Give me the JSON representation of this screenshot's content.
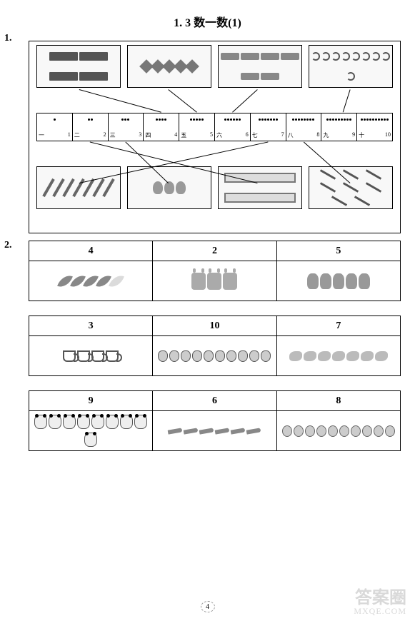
{
  "page": {
    "title": "1. 3   数一数(1)",
    "pageNumber": "4",
    "watermarkTop": "答案圈",
    "watermarkBottom": "MXQE.COM"
  },
  "q1": {
    "number": "1.",
    "topBoxes": [
      {
        "name": "books-box",
        "count": 4,
        "itemClass": "book",
        "target": 4
      },
      {
        "name": "diamonds-box",
        "count": 5,
        "itemClass": "diamond",
        "target": 5
      },
      {
        "name": "money-box",
        "count": 6,
        "itemClass": "money",
        "target": 6
      },
      {
        "name": "arcs-box",
        "count": 9,
        "itemClass": "arc",
        "target": 9
      }
    ],
    "numberBar": [
      {
        "cn": "一",
        "ar": "1",
        "dots": 1
      },
      {
        "cn": "二",
        "ar": "2",
        "dots": 2
      },
      {
        "cn": "三",
        "ar": "3",
        "dots": 3
      },
      {
        "cn": "四",
        "ar": "4",
        "dots": 4
      },
      {
        "cn": "五",
        "ar": "5",
        "dots": 5
      },
      {
        "cn": "六",
        "ar": "6",
        "dots": 6
      },
      {
        "cn": "七",
        "ar": "7",
        "dots": 7
      },
      {
        "cn": "八",
        "ar": "8",
        "dots": 8
      },
      {
        "cn": "九",
        "ar": "9",
        "dots": 9
      },
      {
        "cn": "十",
        "ar": "10",
        "dots": 10
      }
    ],
    "bottomBoxes": [
      {
        "name": "pencils-box",
        "count": 7,
        "itemClass": "pencil",
        "target": 7
      },
      {
        "name": "drops-box",
        "count": 3,
        "itemClass": "drop",
        "target": 3
      },
      {
        "name": "rulers-box",
        "count": 2,
        "itemClass": "ruler",
        "target": 2
      },
      {
        "name": "pens-box",
        "count": 8,
        "itemClass": "pen",
        "target": 8
      }
    ],
    "lines": {
      "stroke": "#000000",
      "strokeWidth": 1,
      "paths": [
        "M 70 68  L 185 100",
        "M 195 68 L 235 100",
        "M 320 68 L 285 100",
        "M 450 68 L 440 100",
        "M 70 200 L 335 142",
        "M 195 200 L 135 142",
        "M 320 200 L 85 142",
        "M 450 200 L 385 142"
      ]
    }
  },
  "q2": {
    "number": "2.",
    "groups": [
      {
        "cells": [
          {
            "header": "4",
            "name": "feathers-cell",
            "itemClass": "feather",
            "count": 4,
            "extraDim": 1
          },
          {
            "header": "2",
            "name": "monsters-cell",
            "itemClass": "monster",
            "count": 3,
            "extraDim": 0
          },
          {
            "header": "5",
            "name": "monkeys-cell",
            "itemClass": "monkey",
            "count": 5,
            "extraDim": 0
          }
        ]
      },
      {
        "cells": [
          {
            "header": "3",
            "name": "cups-cell",
            "itemClass": "cup",
            "count": 4,
            "extraDim": 0
          },
          {
            "header": "10",
            "name": "peaches-cell",
            "itemClass": "peach",
            "count": 10,
            "extraDim": 0
          },
          {
            "header": "7",
            "name": "birds-cell",
            "itemClass": "bird",
            "count": 7,
            "extraDim": 0
          }
        ]
      },
      {
        "cells": [
          {
            "header": "9",
            "name": "pandas-cell",
            "itemClass": "panda",
            "count": 9,
            "extraDim": 0
          },
          {
            "header": "6",
            "name": "brushes-cell",
            "itemClass": "brush",
            "count": 6,
            "extraDim": 0
          },
          {
            "header": "8",
            "name": "bugs-cell",
            "itemClass": "bug",
            "count": 10,
            "extraDim": 0
          }
        ]
      }
    ]
  },
  "colors": {
    "text": "#000000",
    "bg": "#ffffff",
    "border": "#000000",
    "watermark": "rgba(180,180,180,.5)"
  }
}
